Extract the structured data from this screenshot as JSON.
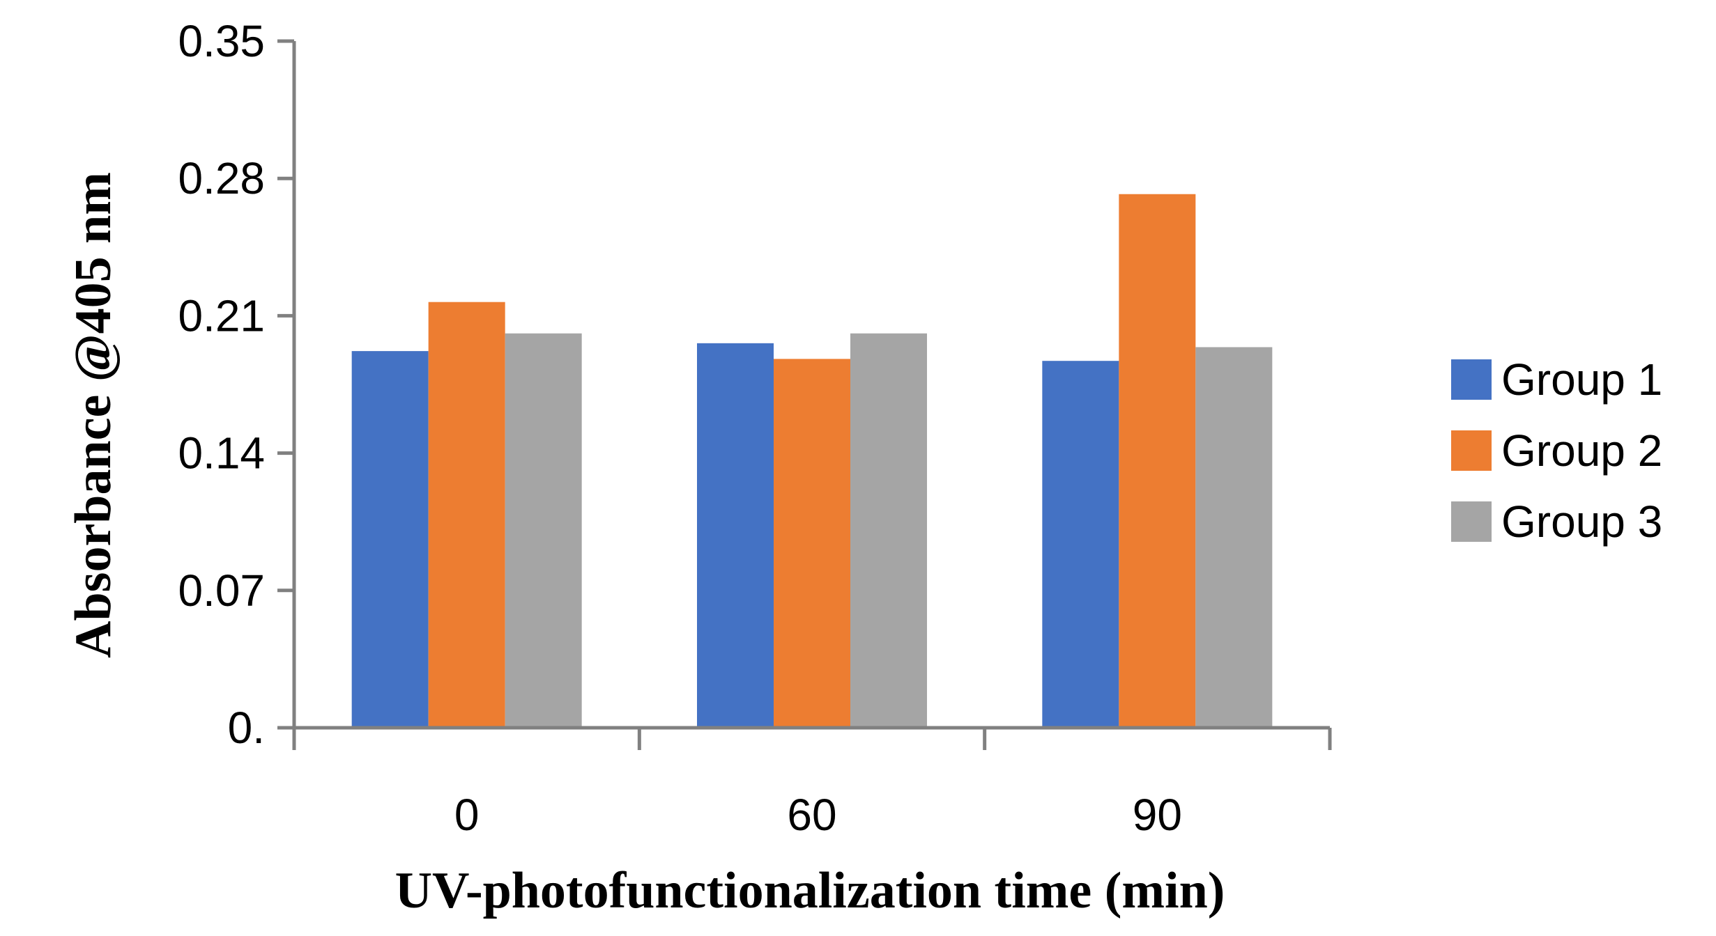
{
  "chart_data": {
    "type": "bar",
    "title": "",
    "xlabel": "UV-photofunctionalization time (min)",
    "ylabel": "Absorbance @405 nm",
    "categories": [
      "0",
      "60",
      "90"
    ],
    "series": [
      {
        "name": "Group 1",
        "color": "#4472C4",
        "values": [
          0.192,
          0.196,
          0.187
        ]
      },
      {
        "name": "Group 2",
        "color": "#ED7D31",
        "values": [
          0.217,
          0.188,
          0.272
        ]
      },
      {
        "name": "Group 3",
        "color": "#A5A5A5",
        "values": [
          0.201,
          0.201,
          0.194
        ]
      }
    ],
    "ylim": [
      0,
      0.35
    ],
    "yticks": [
      0,
      0.07,
      0.14,
      0.21,
      0.28,
      0.35
    ],
    "ytick_labels": [
      "0.",
      "0.07",
      "0.14",
      "0.21",
      "0.28",
      "0.35"
    ],
    "grid": false,
    "legend_position": "right"
  }
}
